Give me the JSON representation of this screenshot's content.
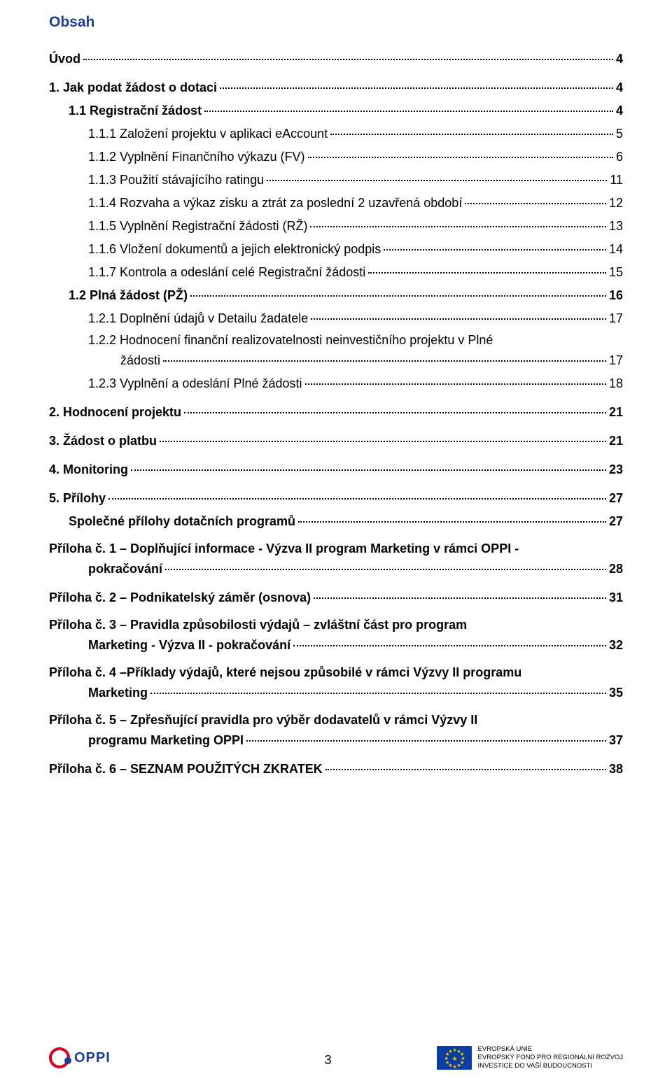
{
  "title": "Obsah",
  "page_number": "3",
  "toc": [
    {
      "label": "Úvod",
      "page": "4",
      "bold": true,
      "indent": "l0"
    },
    {
      "label": "1.  Jak podat žádost o dotaci",
      "page": "4",
      "bold": true,
      "indent": "l1"
    },
    {
      "label": "1.1  Registrační žádost",
      "page": "4",
      "bold": true,
      "indent": "l2"
    },
    {
      "label": "1.1.1  Založení projektu v aplikaci eAccount",
      "page": "5",
      "bold": false,
      "indent": "l3"
    },
    {
      "label": "1.1.2  Vyplnění Finančního výkazu (FV)",
      "page": "6",
      "bold": false,
      "indent": "l3"
    },
    {
      "label": "1.1.3  Použití stávajícího ratingu",
      "page": "11",
      "bold": false,
      "indent": "l3"
    },
    {
      "label": "1.1.4  Rozvaha a výkaz zisku a ztrát za poslední 2 uzavřená období",
      "page": "12",
      "bold": false,
      "indent": "l3"
    },
    {
      "label": "1.1.5  Vyplnění Registrační žádosti (RŽ)",
      "page": "13",
      "bold": false,
      "indent": "l3"
    },
    {
      "label": "1.1.6  Vložení dokumentů a jejich elektronický podpis",
      "page": "14",
      "bold": false,
      "indent": "l3"
    },
    {
      "label": "1.1.7  Kontrola a odeslání celé Registrační žádosti",
      "page": "15",
      "bold": false,
      "indent": "l3"
    },
    {
      "label": "1.2  Plná žádost (PŽ)",
      "page": "16",
      "bold": true,
      "indent": "l2"
    },
    {
      "label": "1.2.1  Doplnění údajů v Detailu žadatele",
      "page": "17",
      "bold": false,
      "indent": "l3"
    },
    {
      "label": "1.2.2  Hodnocení  finanční  realizovatelnosti  neinvestičního  projektu  v Plné",
      "page": "",
      "bold": false,
      "indent": "l3",
      "nodots": true
    },
    {
      "label": "žádosti",
      "page": "17",
      "bold": false,
      "indent": "wrap-continuation"
    },
    {
      "label": "1.2.3  Vyplnění a odeslání Plné žádosti",
      "page": "18",
      "bold": false,
      "indent": "l3"
    },
    {
      "label": "2.  Hodnocení projektu",
      "page": "21",
      "bold": true,
      "indent": "l1"
    },
    {
      "label": "3.  Žádost o platbu",
      "page": "21",
      "bold": true,
      "indent": "l1"
    },
    {
      "label": "4.  Monitoring",
      "page": "23",
      "bold": true,
      "indent": "l1"
    },
    {
      "label": "5.  Přílohy",
      "page": "27",
      "bold": true,
      "indent": "l1"
    },
    {
      "label": "Společné přílohy dotačních programů",
      "page": "27",
      "bold": true,
      "indent": "l2"
    },
    {
      "label": "Příloha č. 1 – Doplňující informace - Výzva II program Marketing v rámci OPPI -",
      "page": "",
      "bold": true,
      "indent": "l0",
      "nodots": true
    },
    {
      "label": "pokračování",
      "page": "28",
      "bold": true,
      "indent": "wrap-continuation2"
    },
    {
      "label": "Příloha č. 2 – Podnikatelský záměr (osnova)",
      "page": "31",
      "bold": true,
      "indent": "l0"
    },
    {
      "label": "Příloha č. 3 – Pravidla způsobilosti výdajů – zvláštní část pro program",
      "page": "",
      "bold": true,
      "indent": "l0",
      "nodots": true
    },
    {
      "label": "Marketing - Výzva II - pokračování",
      "page": "32",
      "bold": true,
      "indent": "wrap-continuation2"
    },
    {
      "label": "Příloha č. 4 –Příklady výdajů, které nejsou způsobilé v rámci Výzvy II programu",
      "page": "",
      "bold": true,
      "indent": "l0",
      "nodots": true
    },
    {
      "label": "Marketing",
      "page": "35",
      "bold": true,
      "indent": "wrap-continuation2"
    },
    {
      "label": "Příloha č. 5 – Zpřesňující pravidla pro výběr dodavatelů v rámci Výzvy II",
      "page": "",
      "bold": true,
      "indent": "l0",
      "nodots": true
    },
    {
      "label": "programu Marketing OPPI",
      "page": "37",
      "bold": true,
      "indent": "wrap-continuation2"
    },
    {
      "label": "Příloha č. 6 – SEZNAM POUŽITÝCH ZKRATEK",
      "page": "38",
      "bold": true,
      "indent": "l0"
    }
  ],
  "footer": {
    "oppi_text": "OPPI",
    "eu_lines": "EVROPSKÁ UNIE\nEVROPSKÝ FOND PRO REGIONÁLNÍ ROZVOJ\nINVESTICE DO VAŠÍ BUDOUCNOSTI"
  },
  "styling": {
    "title_color": "#1f3f94",
    "text_color": "#000000",
    "background": "#ffffff",
    "oppi_red": "#d6001c",
    "oppi_blue": "#1f3f94",
    "eu_flag_bg": "#0b3ea3",
    "eu_star_color": "#ffcc00",
    "font_family": "Arial",
    "title_fontsize": 21,
    "body_fontsize": 18,
    "eu_text_fontsize": 9.5
  }
}
